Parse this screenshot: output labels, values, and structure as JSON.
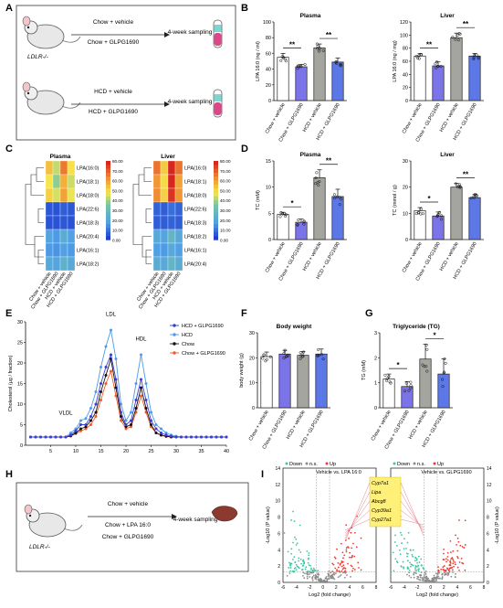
{
  "panel_letters": [
    "A",
    "B",
    "C",
    "D",
    "E",
    "F",
    "G",
    "H",
    "I"
  ],
  "panelA": {
    "groups": [
      {
        "mouse_label": "LDLR-/-",
        "arms": [
          "Chow + vehicle",
          "Chow + GLPG1690"
        ],
        "outcome": "4-week sampling"
      },
      {
        "mouse_label": "",
        "arms": [
          "HCD + vehicle",
          "HCD + GLPG1690"
        ],
        "outcome": "4-week sampling"
      }
    ]
  },
  "panelH": {
    "mouse_label": "LDLR-/-",
    "arms": [
      "Chow + vehicle",
      "Chow + LPA 16:0",
      "Chow + GLPG1690"
    ],
    "outcome": "4-week sampling"
  },
  "colors": {
    "white_bar": "#ffffff",
    "chow_glpg": "#7b73e8",
    "hcd_vehicle": "#a5a5a0",
    "hcd_glpg": "#5b78e6",
    "heat_high": "#d7261e",
    "heat_mid": "#f7e64a",
    "heat_low": "#2040d0",
    "volcano_up": "#f03a2e",
    "volcano_down": "#3cc7a4",
    "volcano_ns": "#8c8c8c",
    "highlight": "#fff07a"
  },
  "chart_data": [
    {
      "id": "B1",
      "type": "bar",
      "title": "Plasma",
      "ylabel": "LPA 16:0 (ng / ml)",
      "ylim": [
        0,
        100
      ],
      "yticks": [
        0,
        20,
        40,
        60,
        80,
        100
      ],
      "categories": [
        "Chow + vehicle",
        "Chow + GLPG1690",
        "HCD + vehicle",
        "HCD + GLPG1690"
      ],
      "values": [
        55,
        43,
        67,
        49
      ],
      "errors": [
        5,
        3,
        5,
        5
      ],
      "significance": [
        {
          "from": 0,
          "to": 1,
          "label": "**"
        },
        {
          "from": 2,
          "to": 3,
          "label": "**"
        }
      ]
    },
    {
      "id": "B2",
      "type": "bar",
      "title": "Liver",
      "ylabel": "LPA 16:0 (ng / mg)",
      "ylim": [
        0,
        120
      ],
      "yticks": [
        0,
        20,
        40,
        60,
        80,
        100,
        120
      ],
      "categories": [
        "Chow + vehicle",
        "Chow + GLPG1690",
        "HCD + vehicle",
        "HCD + GLPG1690"
      ],
      "values": [
        68,
        53,
        96,
        68
      ],
      "errors": [
        4,
        6,
        7,
        4
      ],
      "significance": [
        {
          "from": 0,
          "to": 1,
          "label": "**"
        },
        {
          "from": 2,
          "to": 3,
          "label": "**"
        }
      ]
    },
    {
      "id": "C1",
      "type": "heatmap",
      "title": "Plasma",
      "rows": [
        "LPA(16:0)",
        "LPA(18:1)",
        "LPA(18:0)",
        "LPA(22:6)",
        "LPA(18:3)",
        "LPA(20:4)",
        "LPA(16:1)",
        "LPA(18:2)"
      ],
      "columns": [
        "Chow + vehicle",
        "Chow + GLPG1690",
        "HCD + vehicle",
        "HCD + GLPG1690"
      ],
      "values": [
        [
          55,
          43,
          67,
          49
        ],
        [
          48,
          38,
          58,
          44
        ],
        [
          52,
          45,
          60,
          47
        ],
        [
          4,
          3,
          5,
          4
        ],
        [
          3,
          3,
          4,
          3
        ],
        [
          18,
          15,
          22,
          17
        ],
        [
          15,
          14,
          17,
          15
        ],
        [
          20,
          18,
          24,
          20
        ]
      ],
      "scale_ticks": [
        "80.00",
        "70.00",
        "60.00",
        "50.00",
        "40.00",
        "30.00",
        "20.00",
        "10.00",
        "0.00"
      ],
      "scale_max": 80
    },
    {
      "id": "C2",
      "type": "heatmap",
      "title": "Liver",
      "rows": [
        "LPA(16:0)",
        "LPA(18:1)",
        "LPA(18:0)",
        "LPA(22:6)",
        "LPA(18:3)",
        "LPA(18:2)",
        "LPA(16:1)",
        "LPA(20:4)"
      ],
      "columns": [
        "Chow + vehicle",
        "Chow + GLPG1690",
        "HCD + vehicle",
        "HCD + GLPG1690"
      ],
      "values": [
        [
          68,
          53,
          96,
          68
        ],
        [
          62,
          50,
          80,
          60
        ],
        [
          64,
          52,
          78,
          62
        ],
        [
          6,
          5,
          8,
          6
        ],
        [
          5,
          5,
          6,
          5
        ],
        [
          20,
          18,
          26,
          20
        ],
        [
          16,
          15,
          20,
          16
        ],
        [
          22,
          20,
          26,
          22
        ]
      ],
      "scale_ticks": [
        "80.00",
        "70.00",
        "60.00",
        "50.00",
        "40.00",
        "30.00",
        "20.00",
        "10.00",
        "0.00"
      ],
      "scale_max": 80
    },
    {
      "id": "D1",
      "type": "bar",
      "title": "Plasma",
      "ylabel": "TC (mM)",
      "ylim": [
        0,
        15
      ],
      "yticks": [
        0,
        5,
        10,
        15
      ],
      "categories": [
        "Chow + vehicle",
        "Chow + GLPG1690",
        "HCD + vehicle",
        "HCD + GLPG1690"
      ],
      "values": [
        4.8,
        3.3,
        11.8,
        8.2
      ],
      "errors": [
        0.4,
        0.6,
        1.5,
        1.4
      ],
      "significance": [
        {
          "from": 0,
          "to": 1,
          "label": "*"
        },
        {
          "from": 2,
          "to": 3,
          "label": "**"
        }
      ]
    },
    {
      "id": "D2",
      "type": "bar",
      "title": "Liver",
      "ylabel": "TC (mmol / g)",
      "ylim": [
        0,
        30
      ],
      "yticks": [
        0,
        10,
        20,
        30
      ],
      "categories": [
        "Chow + vehicle",
        "Chow + GLPG1690",
        "HCD + vehicle",
        "HCD + GLPG1690"
      ],
      "values": [
        11,
        9,
        20,
        16
      ],
      "errors": [
        1.2,
        1.5,
        1.5,
        1.2
      ],
      "significance": [
        {
          "from": 0,
          "to": 1,
          "label": "*"
        },
        {
          "from": 2,
          "to": 3,
          "label": "**"
        }
      ]
    },
    {
      "id": "E",
      "type": "line",
      "ylabel": "Cholesterol (µg / fraction)",
      "xlim": [
        0,
        40
      ],
      "ylim": [
        0,
        30
      ],
      "xticks": [
        5,
        10,
        15,
        20,
        25,
        30,
        35,
        40
      ],
      "yticks": [
        0,
        5,
        10,
        15,
        20,
        25,
        30
      ],
      "x": [
        1,
        2,
        3,
        4,
        5,
        6,
        7,
        8,
        9,
        10,
        11,
        12,
        13,
        14,
        15,
        16,
        17,
        18,
        19,
        20,
        21,
        22,
        23,
        24,
        25,
        26,
        27,
        28,
        29,
        30,
        31,
        32,
        33,
        34,
        35,
        36,
        37,
        38,
        39,
        40
      ],
      "series": [
        {
          "name": "HCD + GLPG1690",
          "color": "#3c3cd6",
          "values": [
            2,
            2,
            2,
            2,
            2,
            2,
            2,
            2,
            2.5,
            3.5,
            5,
            5,
            7,
            10,
            15,
            19,
            22,
            16,
            8,
            5,
            6,
            11,
            16,
            11,
            6,
            4,
            3,
            2.5,
            2.2,
            2,
            2,
            2,
            2,
            2,
            2,
            2,
            2,
            2,
            2,
            2
          ]
        },
        {
          "name": "HCD",
          "color": "#4d9be8",
          "values": [
            2,
            2,
            2,
            2,
            2,
            2,
            2,
            2,
            3,
            4,
            6,
            6.5,
            9,
            13,
            19,
            24,
            28,
            21,
            10,
            6,
            8,
            15,
            22,
            15,
            8,
            5,
            4,
            3,
            2.5,
            2.2,
            2,
            2,
            2,
            2,
            2,
            2,
            2,
            2,
            2,
            2
          ]
        },
        {
          "name": "Chow",
          "color": "#111111",
          "values": [
            2,
            2,
            2,
            2,
            2,
            2,
            2,
            2,
            2.3,
            3,
            4,
            4.5,
            6,
            8,
            13,
            17,
            21,
            14,
            7,
            4.5,
            5,
            9,
            14,
            9,
            5,
            3,
            2.5,
            2.2,
            2,
            2,
            2,
            2,
            2,
            2,
            2,
            2,
            2,
            2,
            2,
            2
          ]
        },
        {
          "name": "Chow + GLPG1690",
          "color": "#f05a28",
          "values": [
            2,
            2,
            2,
            2,
            2,
            2,
            2,
            2,
            2.2,
            2.8,
            3.5,
            4,
            5,
            7,
            11,
            15,
            18,
            12,
            6,
            4,
            4.5,
            8,
            12,
            8,
            4.5,
            3,
            2.4,
            2.1,
            2,
            2,
            2,
            2,
            2,
            2,
            2,
            2,
            2,
            2,
            2,
            2
          ]
        }
      ],
      "annotations": [
        {
          "x": 8,
          "y": 7.5,
          "text": "VLDL"
        },
        {
          "x": 17,
          "y": 31.5,
          "text": "LDL"
        },
        {
          "x": 23,
          "y": 25.5,
          "text": "HDL"
        }
      ]
    },
    {
      "id": "F",
      "type": "bar",
      "title": "Body weight",
      "ylabel": "body weight (g)",
      "ylim": [
        0,
        30
      ],
      "yticks": [
        0,
        10,
        20,
        30
      ],
      "categories": [
        "Chow + vehicle",
        "Chow + GLPG1690",
        "HCD + vehicle",
        "HCD + GLPG1690"
      ],
      "values": [
        20.5,
        21.5,
        21,
        21.5
      ],
      "errors": [
        1.8,
        1.5,
        1.5,
        2
      ],
      "significance": []
    },
    {
      "id": "G",
      "type": "bar",
      "title": "Triglyceride (TG)",
      "ylabel": "TG (mM)",
      "ylim": [
        0,
        3
      ],
      "yticks": [
        0,
        1,
        2,
        3
      ],
      "categories": [
        "Chow + vehicle",
        "Chow + GLPG1690",
        "HCD + vehicle",
        "HCD + GLPG1690"
      ],
      "values": [
        1.15,
        0.85,
        1.95,
        1.35
      ],
      "errors": [
        0.2,
        0.2,
        0.6,
        0.6
      ],
      "significance": [
        {
          "from": 0,
          "to": 1,
          "label": "*"
        },
        {
          "from": 2,
          "to": 3,
          "label": "*"
        }
      ]
    },
    {
      "id": "I",
      "type": "scatter",
      "titles": [
        "Vehicle vs. LPA 16:0",
        "Vehicle vs. GLPG1690"
      ],
      "legend": [
        "Down",
        "n.s.",
        "Up"
      ],
      "xlabel": "Log2 (fold change)",
      "ylabel": "-Log10 (P value)",
      "xlim": [
        -6,
        8
      ],
      "ylim": [
        0,
        14
      ],
      "xticks": [
        -6,
        -4,
        -2,
        0,
        2,
        4,
        6,
        8
      ],
      "yticks": [
        0,
        2,
        4,
        6,
        8,
        10,
        12,
        14
      ],
      "highlight_genes": [
        "Cyp7a1",
        "Lipa",
        "Abcg8",
        "Cyp39a1",
        "Cyp27a1"
      ]
    }
  ]
}
